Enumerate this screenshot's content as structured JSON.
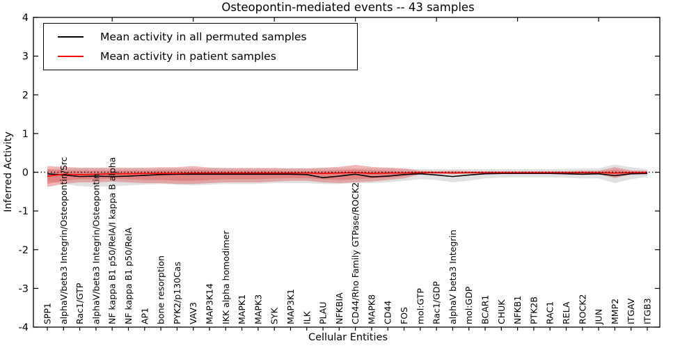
{
  "title": "Osteopontin-mediated events -- 43 samples",
  "legend": {
    "items": [
      {
        "label": "Mean activity in all permuted samples",
        "color": "#000000"
      },
      {
        "label": "Mean activity in patient samples",
        "color": "#ff0000"
      }
    ]
  },
  "chart_data": {
    "type": "line",
    "title": "Osteopontin-mediated events -- 43 samples",
    "xlabel": "Cellular Entities",
    "ylabel": "Inferred Activity",
    "ylim": [
      -4,
      4
    ],
    "grid": false,
    "legend_position": "upper left",
    "zero_reference_line": 0,
    "yticks": [
      -4,
      -3,
      -2,
      -1,
      0,
      1,
      2,
      3,
      4
    ],
    "ytick_labels": [
      "-4",
      "-3",
      "-2",
      "-1",
      "0",
      "1",
      "2",
      "3",
      "4"
    ],
    "top_axis_major_tick_every": 5,
    "categories": [
      "SPP1",
      "alphaV/beta3 Integrin/Osteopontin/Src",
      "Rac1/GTP",
      "alphaV/beta3 Integrin/Osteopontin",
      "NF kappa B1 p50/RelA/I kappa B alpha",
      "NF kappa B1 p50/RelA",
      "AP1",
      "bone resorption",
      "PYK2/p130Cas",
      "VAV3",
      "MAP3K14",
      "IKK alpha homodimer",
      "MAPK1",
      "MAPK3",
      "SYK",
      "MAP3K1",
      "ILK",
      "PLAU",
      "NFKBIA",
      "CD44/Rho Family GTPase/ROCK2",
      "MAPK8",
      "CD44",
      "FOS",
      "mol:GTP",
      "Rac1/GDP",
      "alphaV beta3 Integrin",
      "mol:GDP",
      "BCAR1",
      "CHUK",
      "NFKB1",
      "PTK2B",
      "RAC1",
      "RELA",
      "ROCK2",
      "JUN",
      "MMP2",
      "ITGAV",
      "ITGB3"
    ],
    "series": [
      {
        "name": "Mean activity in all permuted samples",
        "color": "#000000",
        "values": [
          -0.04,
          -0.07,
          -0.11,
          -0.1,
          -0.11,
          -0.1,
          -0.08,
          -0.06,
          -0.05,
          -0.05,
          -0.05,
          -0.05,
          -0.05,
          -0.05,
          -0.05,
          -0.05,
          -0.06,
          -0.14,
          -0.1,
          -0.05,
          -0.12,
          -0.1,
          -0.06,
          -0.04,
          -0.07,
          -0.11,
          -0.07,
          -0.04,
          -0.03,
          -0.03,
          -0.03,
          -0.03,
          -0.04,
          -0.05,
          -0.04,
          -0.09,
          -0.04,
          -0.03
        ]
      },
      {
        "name": "Mean activity in patient samples",
        "color": "#ff0000",
        "values": [
          -0.1,
          -0.05,
          -0.06,
          -0.05,
          -0.04,
          -0.04,
          -0.03,
          -0.03,
          -0.03,
          -0.02,
          -0.02,
          -0.02,
          -0.02,
          -0.02,
          -0.02,
          -0.02,
          -0.02,
          -0.03,
          -0.02,
          -0.01,
          -0.03,
          -0.02,
          -0.02,
          -0.01,
          -0.01,
          -0.02,
          -0.01,
          -0.01,
          -0.01,
          -0.01,
          -0.01,
          -0.01,
          -0.01,
          -0.01,
          -0.01,
          -0.02,
          -0.01,
          -0.01
        ]
      }
    ],
    "bands": [
      {
        "name": "permuted-samples-range",
        "color": "#b4b4b4",
        "opacity": 0.4,
        "hi": [
          0.08,
          0.1,
          0.1,
          0.1,
          0.09,
          0.09,
          0.09,
          0.1,
          0.1,
          0.1,
          0.1,
          0.1,
          0.1,
          0.1,
          0.1,
          0.1,
          0.1,
          0.1,
          0.1,
          0.1,
          0.1,
          0.1,
          0.09,
          0.08,
          0.08,
          0.08,
          0.08,
          0.08,
          0.08,
          0.08,
          0.08,
          0.08,
          0.09,
          0.1,
          0.1,
          0.2,
          0.13,
          0.08
        ],
        "lo": [
          -0.22,
          -0.3,
          -0.36,
          -0.38,
          -0.36,
          -0.34,
          -0.32,
          -0.3,
          -0.32,
          -0.34,
          -0.32,
          -0.3,
          -0.3,
          -0.3,
          -0.28,
          -0.28,
          -0.28,
          -0.3,
          -0.3,
          -0.28,
          -0.28,
          -0.26,
          -0.22,
          -0.18,
          -0.2,
          -0.26,
          -0.22,
          -0.16,
          -0.14,
          -0.13,
          -0.13,
          -0.13,
          -0.14,
          -0.16,
          -0.16,
          -0.28,
          -0.18,
          -0.12
        ]
      },
      {
        "name": "patient-samples-range-outer",
        "color": "#e06060",
        "opacity": 0.45,
        "hi": [
          0.16,
          0.14,
          0.12,
          0.12,
          0.12,
          0.12,
          0.12,
          0.13,
          0.13,
          0.16,
          0.12,
          0.11,
          0.11,
          0.11,
          0.11,
          0.1,
          0.1,
          0.12,
          0.14,
          0.19,
          0.14,
          0.12,
          0.1,
          0.04,
          0.03,
          0.04,
          0.03,
          0.03,
          0.03,
          0.03,
          0.03,
          0.03,
          0.03,
          0.04,
          0.04,
          0.13,
          0.05,
          0.04
        ],
        "lo": [
          -0.38,
          -0.3,
          -0.26,
          -0.26,
          -0.24,
          -0.26,
          -0.28,
          -0.28,
          -0.3,
          -0.3,
          -0.28,
          -0.26,
          -0.26,
          -0.26,
          -0.24,
          -0.22,
          -0.22,
          -0.26,
          -0.28,
          -0.26,
          -0.24,
          -0.2,
          -0.16,
          -0.05,
          -0.04,
          -0.05,
          -0.04,
          -0.04,
          -0.04,
          -0.04,
          -0.04,
          -0.04,
          -0.04,
          -0.05,
          -0.05,
          -0.15,
          -0.06,
          -0.05
        ]
      },
      {
        "name": "patient-samples-range-inner",
        "color": "#dd3333",
        "opacity": 0.3,
        "hi": [
          0.08,
          0.05,
          0.04,
          0.04,
          0.03,
          0.04,
          0.04,
          0.05,
          0.05,
          0.06,
          0.05,
          0.04,
          0.04,
          0.04,
          0.04,
          0.03,
          0.03,
          0.04,
          0.05,
          0.07,
          0.05,
          0.04,
          0.03,
          0.02,
          0.01,
          0.02,
          0.01,
          0.01,
          0.01,
          0.01,
          0.01,
          0.01,
          0.01,
          0.02,
          0.02,
          0.06,
          0.02,
          0.02
        ],
        "lo": [
          -0.3,
          -0.22,
          -0.18,
          -0.18,
          -0.16,
          -0.18,
          -0.2,
          -0.2,
          -0.22,
          -0.22,
          -0.2,
          -0.18,
          -0.18,
          -0.18,
          -0.16,
          -0.15,
          -0.15,
          -0.18,
          -0.2,
          -0.18,
          -0.16,
          -0.14,
          -0.1,
          -0.03,
          -0.02,
          -0.03,
          -0.02,
          -0.02,
          -0.02,
          -0.02,
          -0.02,
          -0.02,
          -0.02,
          -0.03,
          -0.03,
          -0.08,
          -0.03,
          -0.03
        ]
      }
    ]
  }
}
